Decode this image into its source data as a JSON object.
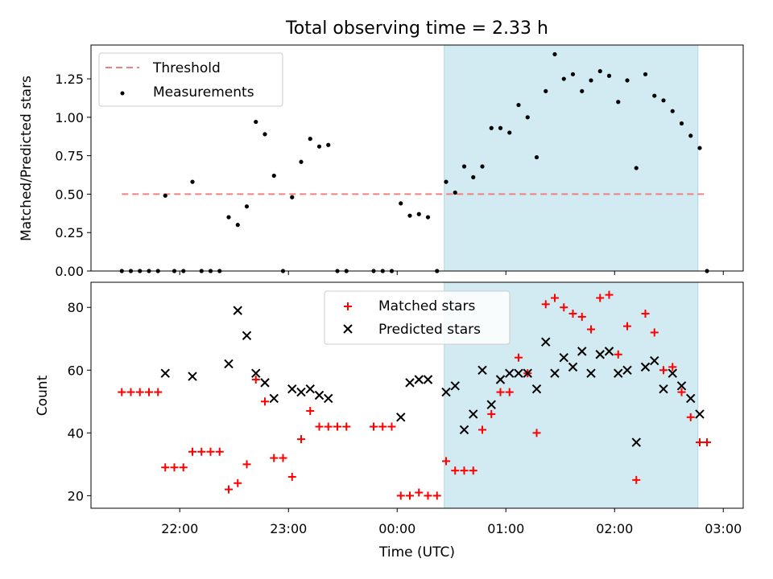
{
  "chart_data": [
    {
      "type": "scatter",
      "title": "Total observing time = 2.33 h",
      "xlabel": "",
      "ylabel": "Matched/Predicted stars",
      "ylim": [
        0,
        1.47
      ],
      "yticks": [
        "0.00",
        "0.25",
        "0.50",
        "0.75",
        "1.00",
        "1.25"
      ],
      "x_time_labels": [
        "22:00",
        "23:00",
        "00:00",
        "01:00",
        "02:00",
        "03:00"
      ],
      "shaded_interval": [
        "00:26",
        "02:46"
      ],
      "shade_color": "#add8e6",
      "legend_location": "upper left",
      "threshold": {
        "name": "Threshold",
        "value": 0.5,
        "x_range": [
          "21:28",
          "02:51"
        ],
        "color": "#f08080"
      },
      "series": [
        {
          "name": "Measurements",
          "color": "#000000",
          "points": [
            [
              "21:28",
              0.0
            ],
            [
              "21:33",
              0.0
            ],
            [
              "21:38",
              0.0
            ],
            [
              "21:43",
              0.0
            ],
            [
              "21:48",
              0.0
            ],
            [
              "21:52",
              0.49
            ],
            [
              "21:57",
              0.0
            ],
            [
              "22:02",
              0.0
            ],
            [
              "22:07",
              0.58
            ],
            [
              "22:12",
              0.0
            ],
            [
              "22:17",
              0.0
            ],
            [
              "22:22",
              0.0
            ],
            [
              "22:27",
              0.35
            ],
            [
              "22:32",
              0.3
            ],
            [
              "22:37",
              0.42
            ],
            [
              "22:42",
              0.97
            ],
            [
              "22:47",
              0.89
            ],
            [
              "22:52",
              0.62
            ],
            [
              "22:57",
              0.0
            ],
            [
              "23:02",
              0.48
            ],
            [
              "23:07",
              0.71
            ],
            [
              "23:12",
              0.86
            ],
            [
              "23:17",
              0.81
            ],
            [
              "23:22",
              0.82
            ],
            [
              "23:27",
              0.0
            ],
            [
              "23:32",
              0.0
            ],
            [
              "23:47",
              0.0
            ],
            [
              "23:52",
              0.0
            ],
            [
              "23:57",
              0.0
            ],
            [
              "00:02",
              0.44
            ],
            [
              "00:07",
              0.36
            ],
            [
              "00:12",
              0.37
            ],
            [
              "00:17",
              0.35
            ],
            [
              "00:22",
              0.0
            ],
            [
              "00:27",
              0.58
            ],
            [
              "00:32",
              0.51
            ],
            [
              "00:37",
              0.68
            ],
            [
              "00:42",
              0.61
            ],
            [
              "00:47",
              0.68
            ],
            [
              "00:52",
              0.93
            ],
            [
              "00:57",
              0.93
            ],
            [
              "01:02",
              0.9
            ],
            [
              "01:07",
              1.08
            ],
            [
              "01:12",
              1.0
            ],
            [
              "01:17",
              0.74
            ],
            [
              "01:22",
              1.17
            ],
            [
              "01:27",
              1.41
            ],
            [
              "01:32",
              1.25
            ],
            [
              "01:37",
              1.28
            ],
            [
              "01:42",
              1.17
            ],
            [
              "01:47",
              1.24
            ],
            [
              "01:52",
              1.3
            ],
            [
              "01:57",
              1.27
            ],
            [
              "02:02",
              1.1
            ],
            [
              "02:07",
              1.24
            ],
            [
              "02:12",
              0.67
            ],
            [
              "02:17",
              1.28
            ],
            [
              "02:22",
              1.14
            ],
            [
              "02:27",
              1.11
            ],
            [
              "02:32",
              1.04
            ],
            [
              "02:37",
              0.96
            ],
            [
              "02:42",
              0.88
            ],
            [
              "02:47",
              0.8
            ],
            [
              "02:51",
              0.0
            ]
          ]
        }
      ]
    },
    {
      "type": "scatter",
      "title": "",
      "xlabel": "Time (UTC)",
      "ylabel": "Count",
      "ylim": [
        16,
        88
      ],
      "yticks": [
        "20",
        "40",
        "60",
        "80"
      ],
      "x_time_labels": [
        "22:00",
        "23:00",
        "00:00",
        "01:00",
        "02:00",
        "03:00"
      ],
      "shaded_interval": [
        "00:26",
        "02:46"
      ],
      "shade_color": "#add8e6",
      "legend_location": "upper center",
      "series": [
        {
          "name": "Matched stars",
          "marker": "plus",
          "color": "#ff0000",
          "points": [
            [
              "21:28",
              53
            ],
            [
              "21:33",
              53
            ],
            [
              "21:38",
              53
            ],
            [
              "21:43",
              53
            ],
            [
              "21:48",
              53
            ],
            [
              "21:52",
              29
            ],
            [
              "21:57",
              29
            ],
            [
              "22:02",
              29
            ],
            [
              "22:07",
              34
            ],
            [
              "22:12",
              34
            ],
            [
              "22:17",
              34
            ],
            [
              "22:22",
              34
            ],
            [
              "22:27",
              22
            ],
            [
              "22:32",
              24
            ],
            [
              "22:37",
              30
            ],
            [
              "22:42",
              57
            ],
            [
              "22:47",
              50
            ],
            [
              "22:52",
              32
            ],
            [
              "22:57",
              32
            ],
            [
              "23:02",
              26
            ],
            [
              "23:07",
              38
            ],
            [
              "23:12",
              47
            ],
            [
              "23:17",
              42
            ],
            [
              "23:22",
              42
            ],
            [
              "23:27",
              42
            ],
            [
              "23:32",
              42
            ],
            [
              "23:47",
              42
            ],
            [
              "23:52",
              42
            ],
            [
              "23:57",
              42
            ],
            [
              "00:02",
              20
            ],
            [
              "00:07",
              20
            ],
            [
              "00:12",
              21
            ],
            [
              "00:17",
              20
            ],
            [
              "00:22",
              20
            ],
            [
              "00:27",
              31
            ],
            [
              "00:32",
              28
            ],
            [
              "00:37",
              28
            ],
            [
              "00:42",
              28
            ],
            [
              "00:47",
              41
            ],
            [
              "00:52",
              46
            ],
            [
              "00:57",
              53
            ],
            [
              "01:02",
              53
            ],
            [
              "01:07",
              64
            ],
            [
              "01:12",
              59
            ],
            [
              "01:17",
              40
            ],
            [
              "01:22",
              81
            ],
            [
              "01:27",
              83
            ],
            [
              "01:32",
              80
            ],
            [
              "01:37",
              78
            ],
            [
              "01:42",
              77
            ],
            [
              "01:47",
              73
            ],
            [
              "01:52",
              83
            ],
            [
              "01:57",
              84
            ],
            [
              "02:02",
              65
            ],
            [
              "02:07",
              74
            ],
            [
              "02:12",
              25
            ],
            [
              "02:17",
              78
            ],
            [
              "02:22",
              72
            ],
            [
              "02:27",
              60
            ],
            [
              "02:32",
              61
            ],
            [
              "02:37",
              53
            ],
            [
              "02:42",
              45
            ],
            [
              "02:47",
              37
            ],
            [
              "02:51",
              37
            ]
          ]
        },
        {
          "name": "Predicted stars",
          "marker": "x",
          "color": "#000000",
          "points": [
            [
              "21:52",
              59
            ],
            [
              "22:07",
              58
            ],
            [
              "22:27",
              62
            ],
            [
              "22:32",
              79
            ],
            [
              "22:37",
              71
            ],
            [
              "22:42",
              59
            ],
            [
              "22:47",
              56
            ],
            [
              "22:52",
              51
            ],
            [
              "23:02",
              54
            ],
            [
              "23:07",
              53
            ],
            [
              "23:12",
              54
            ],
            [
              "23:17",
              52
            ],
            [
              "23:22",
              51
            ],
            [
              "00:02",
              45
            ],
            [
              "00:07",
              56
            ],
            [
              "00:12",
              57
            ],
            [
              "00:17",
              57
            ],
            [
              "00:27",
              53
            ],
            [
              "00:32",
              55
            ],
            [
              "00:37",
              41
            ],
            [
              "00:42",
              46
            ],
            [
              "00:47",
              60
            ],
            [
              "00:52",
              49
            ],
            [
              "00:57",
              57
            ],
            [
              "01:02",
              59
            ],
            [
              "01:07",
              59
            ],
            [
              "01:12",
              59
            ],
            [
              "01:17",
              54
            ],
            [
              "01:22",
              69
            ],
            [
              "01:27",
              59
            ],
            [
              "01:32",
              64
            ],
            [
              "01:37",
              61
            ],
            [
              "01:42",
              66
            ],
            [
              "01:47",
              59
            ],
            [
              "01:52",
              65
            ],
            [
              "01:57",
              66
            ],
            [
              "02:02",
              59
            ],
            [
              "02:07",
              60
            ],
            [
              "02:12",
              37
            ],
            [
              "02:17",
              61
            ],
            [
              "02:22",
              63
            ],
            [
              "02:27",
              54
            ],
            [
              "02:32",
              59
            ],
            [
              "02:37",
              55
            ],
            [
              "02:42",
              51
            ],
            [
              "02:47",
              46
            ]
          ]
        }
      ]
    }
  ]
}
